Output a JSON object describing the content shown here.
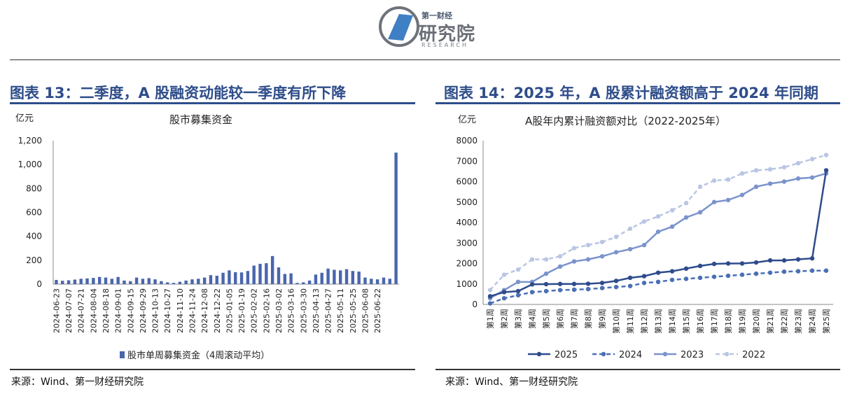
{
  "logo": {
    "top_text": "第一财经",
    "main_text": "研究院",
    "sub_text": "RESEARCH"
  },
  "colors": {
    "title_blue": "#2e4d8a",
    "bar": "#4a66ac",
    "s2025": "#2e4b8c",
    "s2024": "#4a6fb5",
    "s2023": "#7b93cd",
    "s2022": "#b9c6e3"
  },
  "left": {
    "figure_title": "图表 13：二季度，A 股融资动能较一季度有所下降",
    "unit": "亿元",
    "source": "来源：Wind、第一财经研究院",
    "chart_data": {
      "type": "bar",
      "title": "股市募集资金",
      "ylabel": "亿元",
      "ylim": [
        0,
        1200
      ],
      "yticks": [
        "0",
        "200",
        "400",
        "600",
        "800",
        "1,000",
        "1,200"
      ],
      "legend": "bottom-center",
      "series": [
        {
          "name": "股市单周募集资金（4周滚动平均）",
          "values": [
            35,
            28,
            32,
            38,
            45,
            48,
            52,
            60,
            55,
            45,
            60,
            30,
            25,
            55,
            45,
            50,
            40,
            25,
            15,
            10,
            20,
            30,
            40,
            45,
            55,
            75,
            70,
            95,
            115,
            100,
            98,
            110,
            155,
            170,
            175,
            235,
            140,
            85,
            90,
            10,
            15,
            30,
            80,
            95,
            130,
            120,
            115,
            125,
            110,
            105,
            55,
            45,
            40,
            55,
            45,
            1100
          ]
        }
      ],
      "x_tick_labels": [
        "2024-06-23",
        "2024-07-07",
        "2024-07-21",
        "2024-08-04",
        "2024-08-18",
        "2024-09-01",
        "2024-09-15",
        "2024-09-29",
        "2024-10-13",
        "2024-10-27",
        "2024-11-10",
        "2024-11-24",
        "2024-12-08",
        "2024-12-22",
        "2025-01-05",
        "2025-01-19",
        "2025-02-02",
        "2025-02-16",
        "2025-03-02",
        "2025-03-16",
        "2025-03-30",
        "2025-04-13",
        "2025-04-27",
        "2025-05-11",
        "2025-05-25",
        "2025-06-08",
        "2025-06-22"
      ]
    }
  },
  "right": {
    "figure_title": "图表 14：2025 年，A 股累计融资额高于 2024 年同期",
    "unit": "亿元",
    "source": "来源：Wind、第一财经研究院",
    "chart_data": {
      "type": "line",
      "title": "A股年内累计融资额对比（2022-2025年）",
      "ylabel": "亿元",
      "ylim": [
        0,
        8000
      ],
      "yticks": [
        "0",
        "1000",
        "2000",
        "3000",
        "4000",
        "5000",
        "6000",
        "7000",
        "8000"
      ],
      "legend": "bottom-center",
      "categories": [
        "第1周",
        "第2周",
        "第3周",
        "第4周",
        "第5周",
        "第6周",
        "第7周",
        "第8周",
        "第9周",
        "第10周",
        "第11周",
        "第12周",
        "第13周",
        "第14周",
        "第15周",
        "第16周",
        "第17周",
        "第18周",
        "第19周",
        "第20周",
        "第21周",
        "第22周",
        "第23周",
        "第24周",
        "第25周"
      ],
      "series": [
        {
          "name": "2025",
          "values": [
            400,
            600,
            650,
            980,
            990,
            1000,
            1000,
            1010,
            1050,
            1150,
            1300,
            1380,
            1550,
            1620,
            1750,
            1880,
            1980,
            2000,
            2000,
            2050,
            2150,
            2150,
            2200,
            2250,
            6550
          ]
        },
        {
          "name": "2024",
          "values": [
            50,
            300,
            450,
            600,
            650,
            700,
            720,
            750,
            800,
            850,
            900,
            1050,
            1100,
            1200,
            1250,
            1300,
            1350,
            1400,
            1450,
            1500,
            1550,
            1600,
            1620,
            1650,
            1650
          ]
        },
        {
          "name": "2023",
          "values": [
            300,
            700,
            1100,
            1100,
            1500,
            1850,
            2100,
            2200,
            2350,
            2550,
            2700,
            2900,
            3550,
            3800,
            4250,
            4500,
            5000,
            5100,
            5350,
            5750,
            5900,
            6000,
            6150,
            6200,
            6400
          ]
        },
        {
          "name": "2022",
          "values": [
            700,
            1450,
            1700,
            2200,
            2200,
            2350,
            2750,
            2900,
            3050,
            3300,
            3700,
            4050,
            4300,
            4600,
            4950,
            5750,
            6050,
            6100,
            6400,
            6550,
            6600,
            6700,
            6900,
            7100,
            7300
          ]
        }
      ]
    }
  }
}
